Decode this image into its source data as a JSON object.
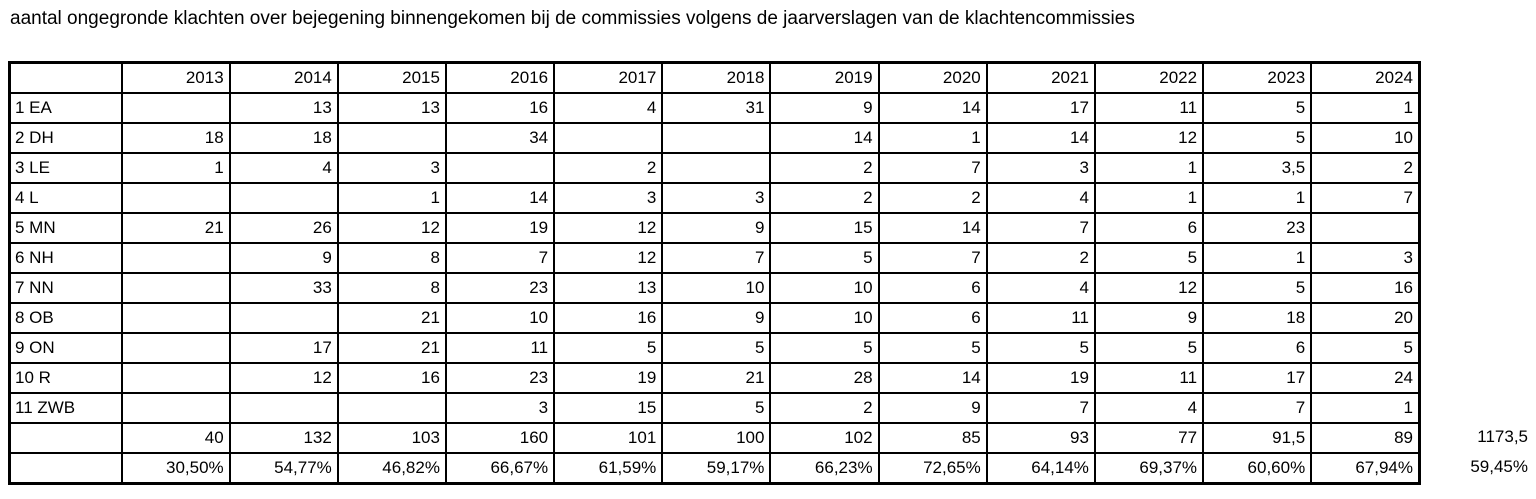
{
  "chart_data": {
    "type": "table",
    "title": "aantal ongegronde klachten over bejegening binnengekomen bij de commissies volgens de jaarverslagen van de klachtencommissies",
    "corner_label": "",
    "years": [
      "2013",
      "2014",
      "2015",
      "2016",
      "2017",
      "2018",
      "2019",
      "2020",
      "2021",
      "2022",
      "2023",
      "2024"
    ],
    "rows": [
      {
        "label": "1 EA",
        "values": [
          "",
          "13",
          "13",
          "16",
          "4",
          "31",
          "9",
          "14",
          "17",
          "11",
          "5",
          "1"
        ]
      },
      {
        "label": "2 DH",
        "values": [
          "18",
          "18",
          "",
          "34",
          "",
          "",
          "14",
          "1",
          "14",
          "12",
          "5",
          "10"
        ]
      },
      {
        "label": "3 LE",
        "values": [
          "1",
          "4",
          "3",
          "",
          "2",
          "",
          "2",
          "7",
          "3",
          "1",
          "3,5",
          "2"
        ]
      },
      {
        "label": "4 L",
        "values": [
          "",
          "",
          "1",
          "14",
          "3",
          "3",
          "2",
          "2",
          "4",
          "1",
          "1",
          "7"
        ]
      },
      {
        "label": "5 MN",
        "values": [
          "21",
          "26",
          "12",
          "19",
          "12",
          "9",
          "15",
          "14",
          "7",
          "6",
          "23",
          ""
        ]
      },
      {
        "label": "6 NH",
        "values": [
          "",
          "9",
          "8",
          "7",
          "12",
          "7",
          "5",
          "7",
          "2",
          "5",
          "1",
          "3"
        ]
      },
      {
        "label": "7 NN",
        "values": [
          "",
          "33",
          "8",
          "23",
          "13",
          "10",
          "10",
          "6",
          "4",
          "12",
          "5",
          "16"
        ]
      },
      {
        "label": "8 OB",
        "values": [
          "",
          "",
          "21",
          "10",
          "16",
          "9",
          "10",
          "6",
          "11",
          "9",
          "18",
          "20"
        ]
      },
      {
        "label": "9 ON",
        "values": [
          "",
          "17",
          "21",
          "11",
          "5",
          "5",
          "5",
          "5",
          "5",
          "5",
          "6",
          "5"
        ]
      },
      {
        "label": "10 R",
        "values": [
          "",
          "12",
          "16",
          "23",
          "19",
          "21",
          "28",
          "14",
          "19",
          "11",
          "17",
          "24"
        ]
      },
      {
        "label": "11 ZWB",
        "values": [
          "",
          "",
          "",
          "3",
          "15",
          "5",
          "2",
          "9",
          "7",
          "4",
          "7",
          "1"
        ]
      }
    ],
    "totals_row": {
      "label": "",
      "values": [
        "40",
        "132",
        "103",
        "160",
        "101",
        "100",
        "102",
        "85",
        "93",
        "77",
        "91,5",
        "89"
      ],
      "grand_total": "1173,5"
    },
    "percent_row": {
      "label": "",
      "values": [
        "30,50%",
        "54,77%",
        "46,82%",
        "66,67%",
        "61,59%",
        "59,17%",
        "66,23%",
        "72,65%",
        "64,14%",
        "69,37%",
        "60,60%",
        "67,94%"
      ],
      "overall": "59,45%"
    },
    "layout": {
      "grid": "all-borders",
      "text_color": "#000000",
      "background": "#ffffff"
    }
  }
}
